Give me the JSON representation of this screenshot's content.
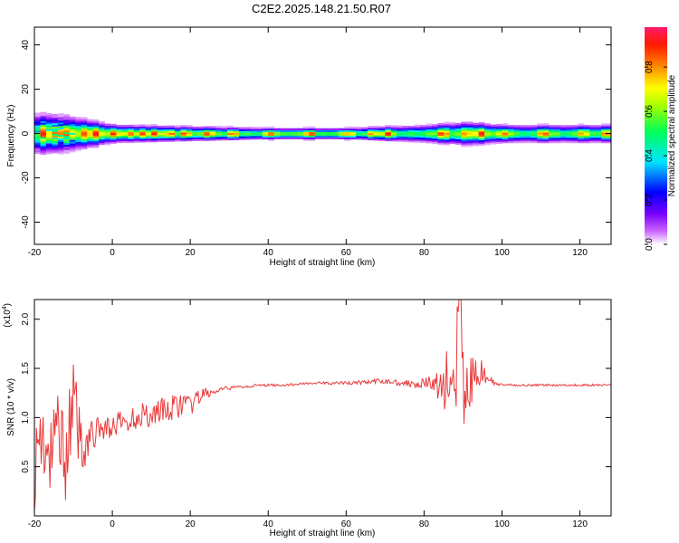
{
  "title": "C2E2.2025.148.21.50.R07",
  "chart_data": [
    {
      "type": "heatmap",
      "xlabel": "Height of straight line (km)",
      "ylabel": "Frequency (Hz)",
      "xlim": [
        -20,
        128
      ],
      "ylim": [
        -50,
        48
      ],
      "xticks": [
        -20,
        0,
        20,
        40,
        60,
        80,
        100,
        120
      ],
      "yticks": [
        -40,
        -20,
        0,
        20,
        40
      ],
      "colorbar": {
        "label": "Normalized spectral amplitude",
        "ticks": [
          0.0,
          0.2,
          0.4,
          0.6,
          0.8
        ],
        "range": [
          0.0,
          0.98
        ],
        "colormap": "rainbow (magenta-blue-cyan-green-yellow-orange-red-pink)"
      },
      "band": {
        "center_hz": 0,
        "halfwidth_hz_by_height": [
          [
            -20,
            7
          ],
          [
            -12,
            6
          ],
          [
            -8,
            5
          ],
          [
            0,
            3
          ],
          [
            20,
            2.5
          ],
          [
            40,
            2
          ],
          [
            60,
            2
          ],
          [
            80,
            3
          ],
          [
            90,
            4
          ],
          [
            100,
            3
          ],
          [
            128,
            3
          ]
        ],
        "peak_ridge_heights_km": [
          -18,
          -15,
          -12,
          -8,
          -5,
          0,
          4,
          7,
          10,
          14,
          18,
          24,
          30,
          40,
          50,
          60,
          66,
          70,
          84,
          90,
          94,
          100,
          110,
          120,
          126
        ]
      }
    },
    {
      "type": "line",
      "xlabel": "Height of straight line (km)",
      "ylabel": "SNR (10 * v/v)",
      "multiplier": "(x10^4)",
      "multiplier_base": "(x10",
      "multiplier_exp": "4",
      "multiplier_close": ")",
      "xlim": [
        -20,
        128
      ],
      "ylim": [
        0.0,
        2.2
      ],
      "xticks": [
        -20,
        0,
        20,
        40,
        60,
        80,
        100,
        120
      ],
      "yticks": [
        0.5,
        1.0,
        1.5,
        2.0
      ],
      "ytick_labels": [
        "0.5",
        "1.0",
        "1.5",
        "2.0"
      ],
      "line_color": "#e8393a",
      "series_summary": {
        "x": [
          -20,
          -18,
          -16,
          -14,
          -12,
          -10,
          -8,
          -6,
          -4,
          -2,
          0,
          2,
          4,
          6,
          8,
          10,
          12,
          14,
          16,
          18,
          20,
          22,
          24,
          26,
          28,
          30,
          35,
          40,
          45,
          50,
          55,
          60,
          65,
          70,
          75,
          80,
          82,
          84,
          86,
          88,
          89,
          90,
          92,
          94,
          96,
          98,
          100,
          110,
          120,
          128
        ],
        "y": [
          0.5,
          0.9,
          0.4,
          1.0,
          0.6,
          1.2,
          0.7,
          0.8,
          0.85,
          0.9,
          0.9,
          0.95,
          0.95,
          1.0,
          1.05,
          1.0,
          1.1,
          1.05,
          1.1,
          1.15,
          1.1,
          1.2,
          1.25,
          1.25,
          1.28,
          1.3,
          1.32,
          1.33,
          1.33,
          1.35,
          1.35,
          1.35,
          1.36,
          1.37,
          1.35,
          1.35,
          1.35,
          1.3,
          1.4,
          1.2,
          2.2,
          1.3,
          1.3,
          1.5,
          1.4,
          1.35,
          1.33,
          1.33,
          1.33,
          1.33
        ],
        "noise_amplitude": [
          0.45,
          0.5,
          0.55,
          0.5,
          0.45,
          0.4,
          0.3,
          0.2,
          0.15,
          0.13,
          0.12,
          0.12,
          0.12,
          0.12,
          0.13,
          0.13,
          0.14,
          0.14,
          0.14,
          0.12,
          0.1,
          0.08,
          0.06,
          0.04,
          0.03,
          0.02,
          0.015,
          0.012,
          0.012,
          0.012,
          0.015,
          0.02,
          0.025,
          0.03,
          0.035,
          0.05,
          0.1,
          0.2,
          0.35,
          0.45,
          0.45,
          0.45,
          0.35,
          0.2,
          0.06,
          0.03,
          0.012,
          0.01,
          0.01,
          0.01
        ]
      }
    }
  ]
}
